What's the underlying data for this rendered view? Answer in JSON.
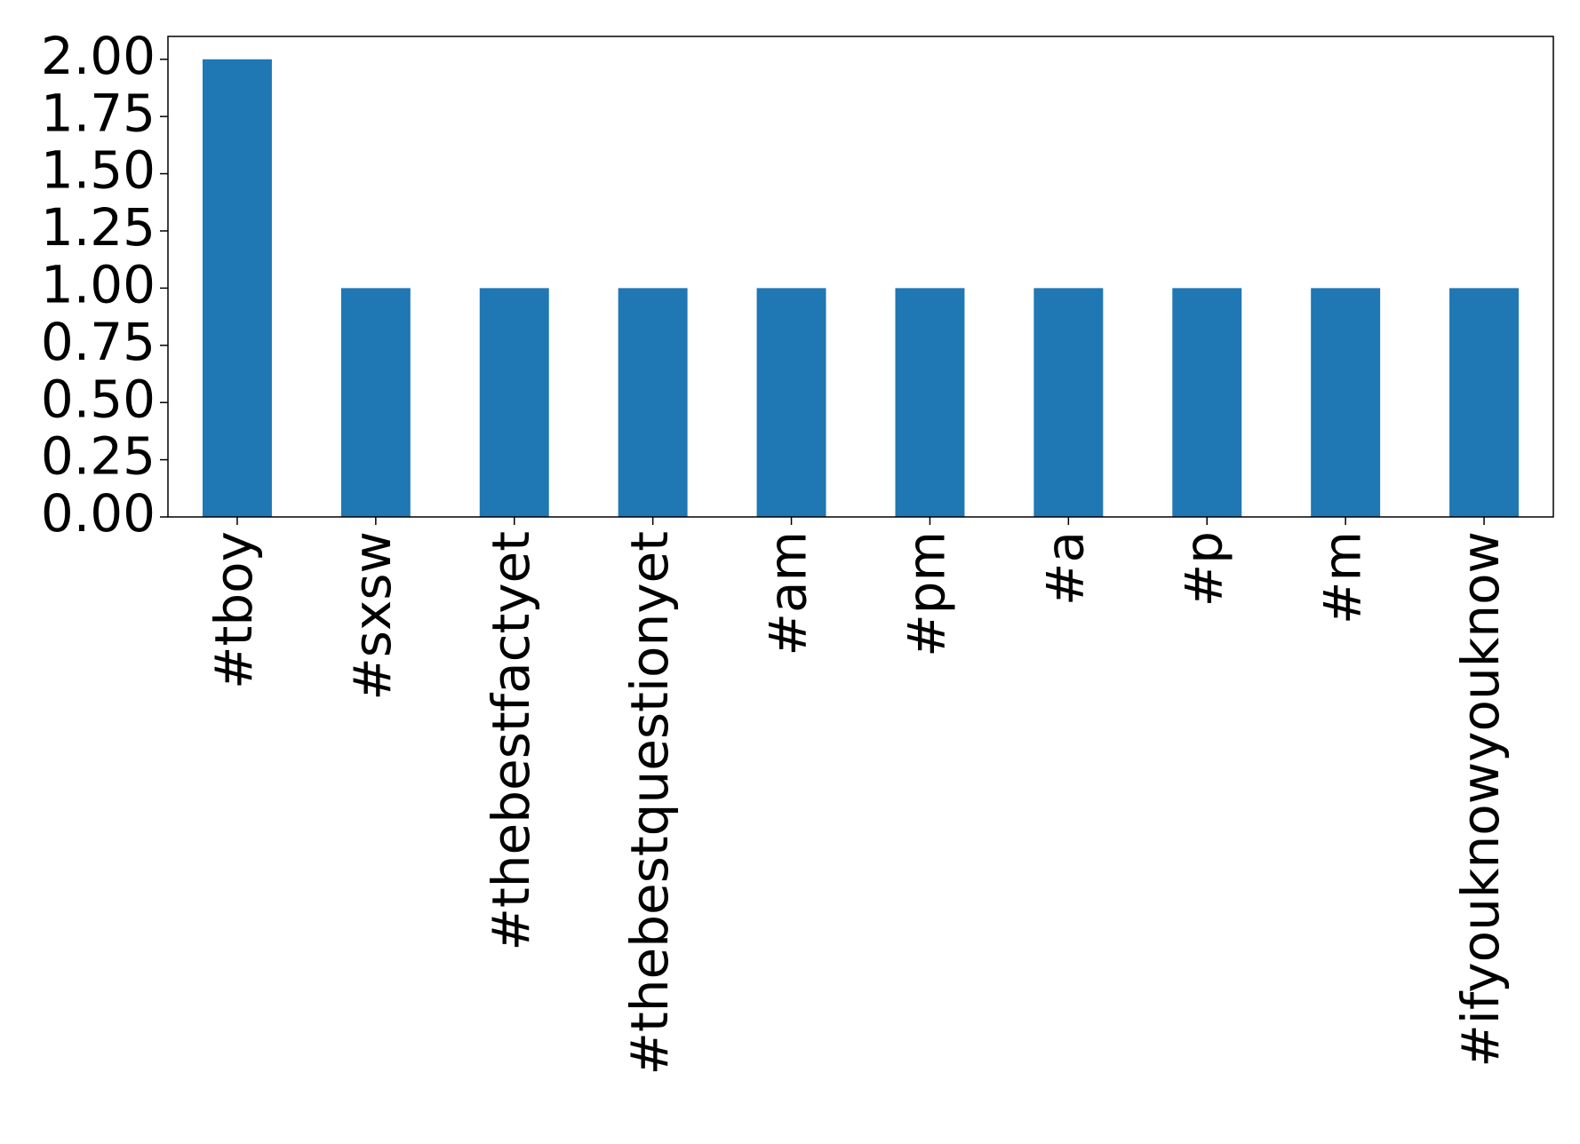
{
  "chart_data": {
    "type": "bar",
    "categories": [
      "#tboy",
      "#sxsw",
      "#thebestfactyet",
      "#thebestquestionyet",
      "#am",
      "#pm",
      "#a",
      "#p",
      "#m",
      "#ifyouknowyouknow"
    ],
    "values": [
      2,
      1,
      1,
      1,
      1,
      1,
      1,
      1,
      1,
      1
    ],
    "color": "#1f77b4",
    "ylim": [
      0,
      2.1
    ],
    "yticks": [
      {
        "value": 0,
        "label": "0.00"
      },
      {
        "value": 0.25,
        "label": "0.25"
      },
      {
        "value": 0.5,
        "label": "0.50"
      },
      {
        "value": 0.75,
        "label": "0.75"
      },
      {
        "value": 1,
        "label": "1.00"
      },
      {
        "value": 1.25,
        "label": "1.25"
      },
      {
        "value": 1.5,
        "label": "1.50"
      },
      {
        "value": 1.75,
        "label": "1.75"
      },
      {
        "value": 2,
        "label": "2.00"
      }
    ],
    "grid": false
  }
}
